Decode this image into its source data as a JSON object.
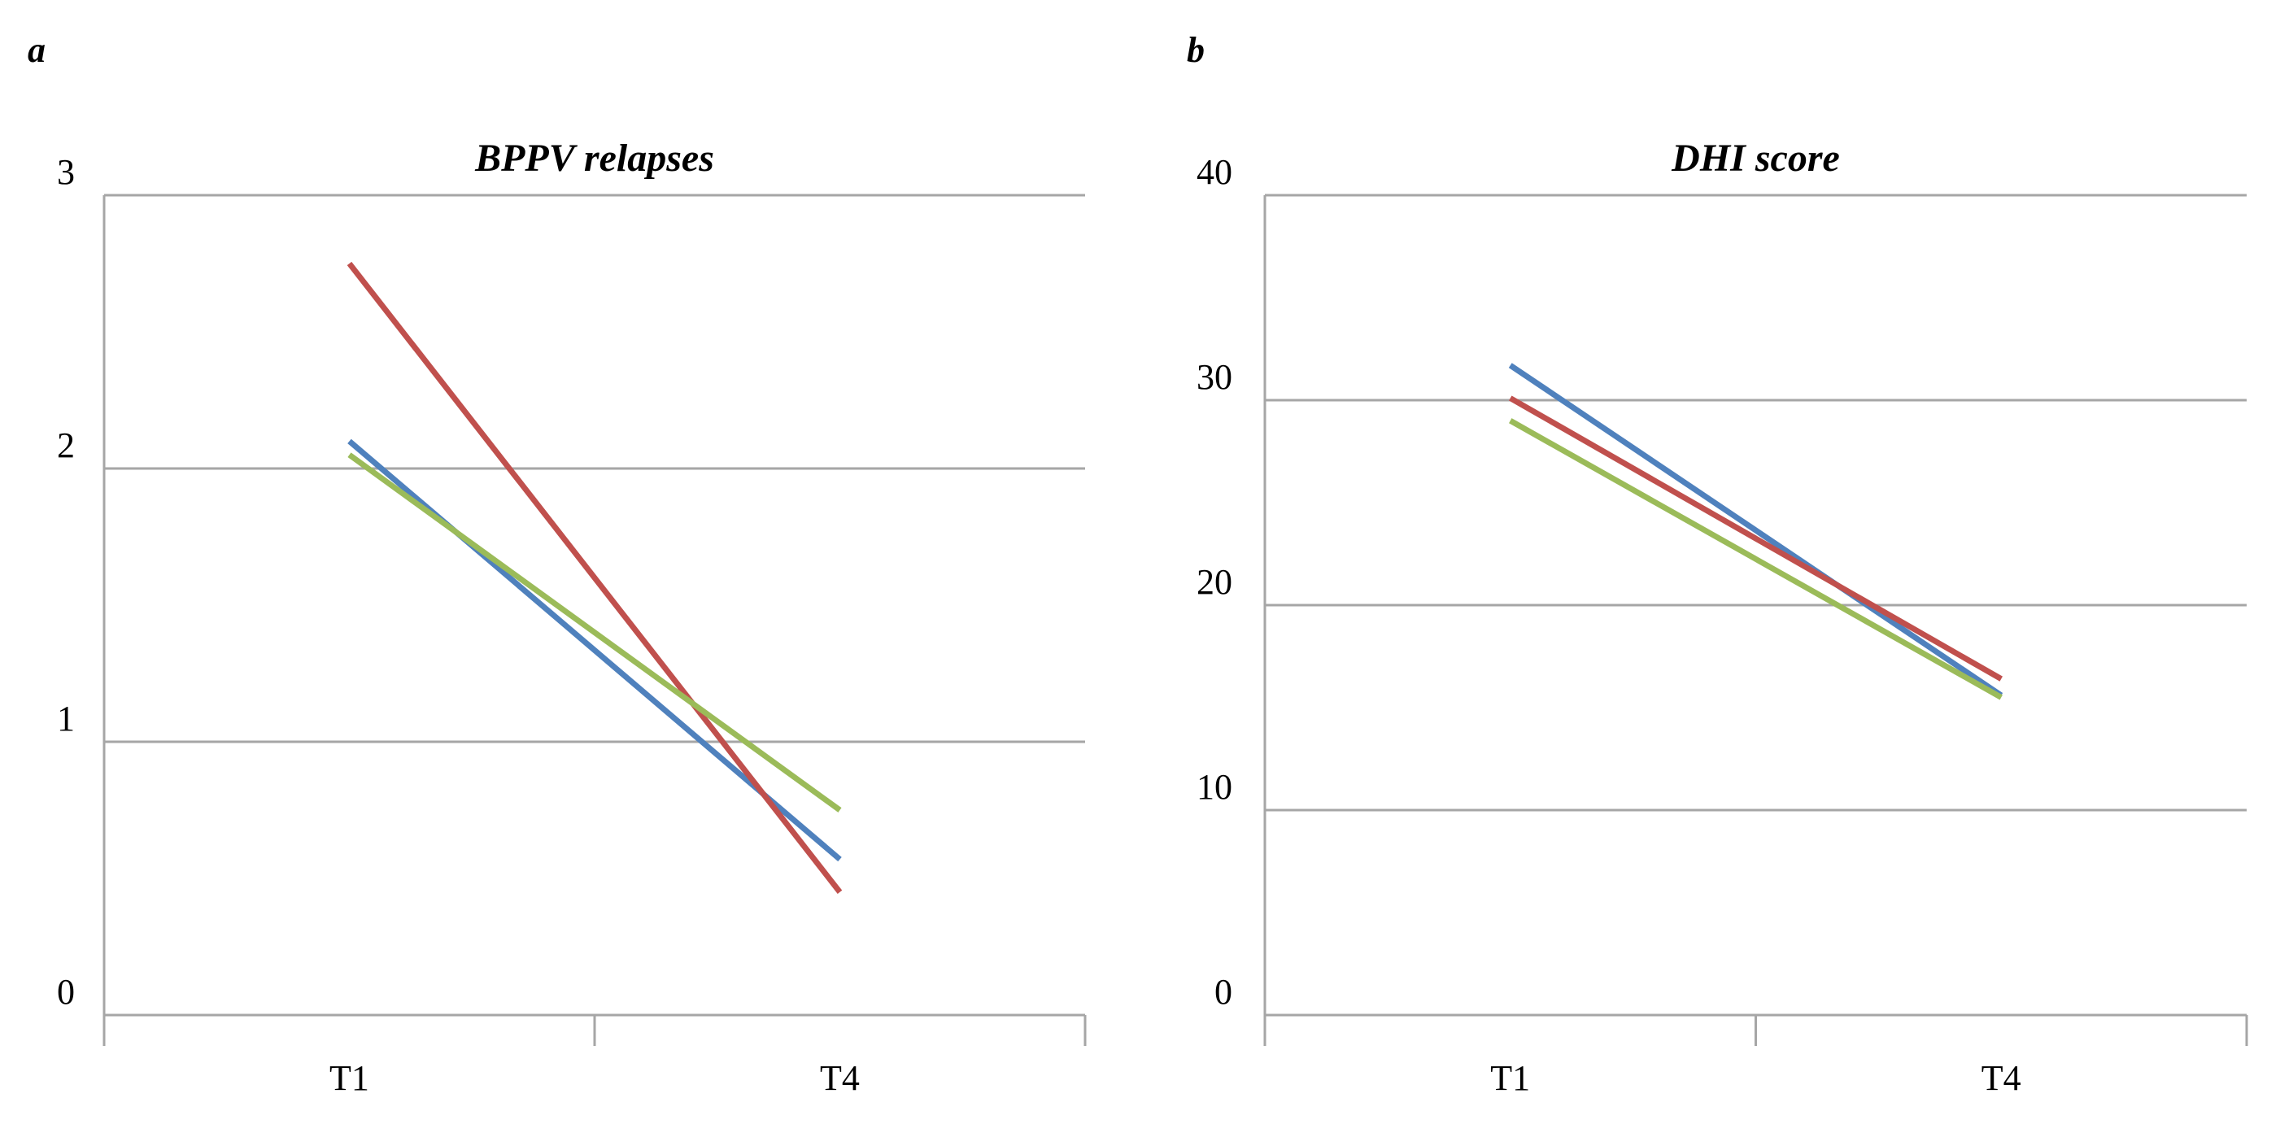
{
  "chart_data": [
    {
      "type": "line",
      "panel_label": "a",
      "title": "BPPV relapses",
      "xlabel": "",
      "ylabel": "",
      "categories": [
        "T1",
        "T4"
      ],
      "ylim": [
        0,
        3
      ],
      "yticks": [
        0,
        1,
        2,
        3
      ],
      "grid": true,
      "series": [
        {
          "color": "#4f81bd",
          "values": [
            2.1,
            0.57
          ]
        },
        {
          "color": "#c0504d",
          "values": [
            2.75,
            0.45
          ]
        },
        {
          "color": "#9bbb59",
          "values": [
            2.05,
            0.75
          ]
        }
      ]
    },
    {
      "type": "line",
      "panel_label": "b",
      "title": "DHI score",
      "xlabel": "",
      "ylabel": "",
      "categories": [
        "T1",
        "T4"
      ],
      "ylim": [
        0,
        40
      ],
      "yticks": [
        0,
        10,
        20,
        30,
        40
      ],
      "grid": true,
      "series": [
        {
          "color": "#4f81bd",
          "values": [
            31.7,
            15.6
          ]
        },
        {
          "color": "#c0504d",
          "values": [
            30.1,
            16.4
          ]
        },
        {
          "color": "#9bbb59",
          "values": [
            29.0,
            15.5
          ]
        }
      ]
    }
  ]
}
